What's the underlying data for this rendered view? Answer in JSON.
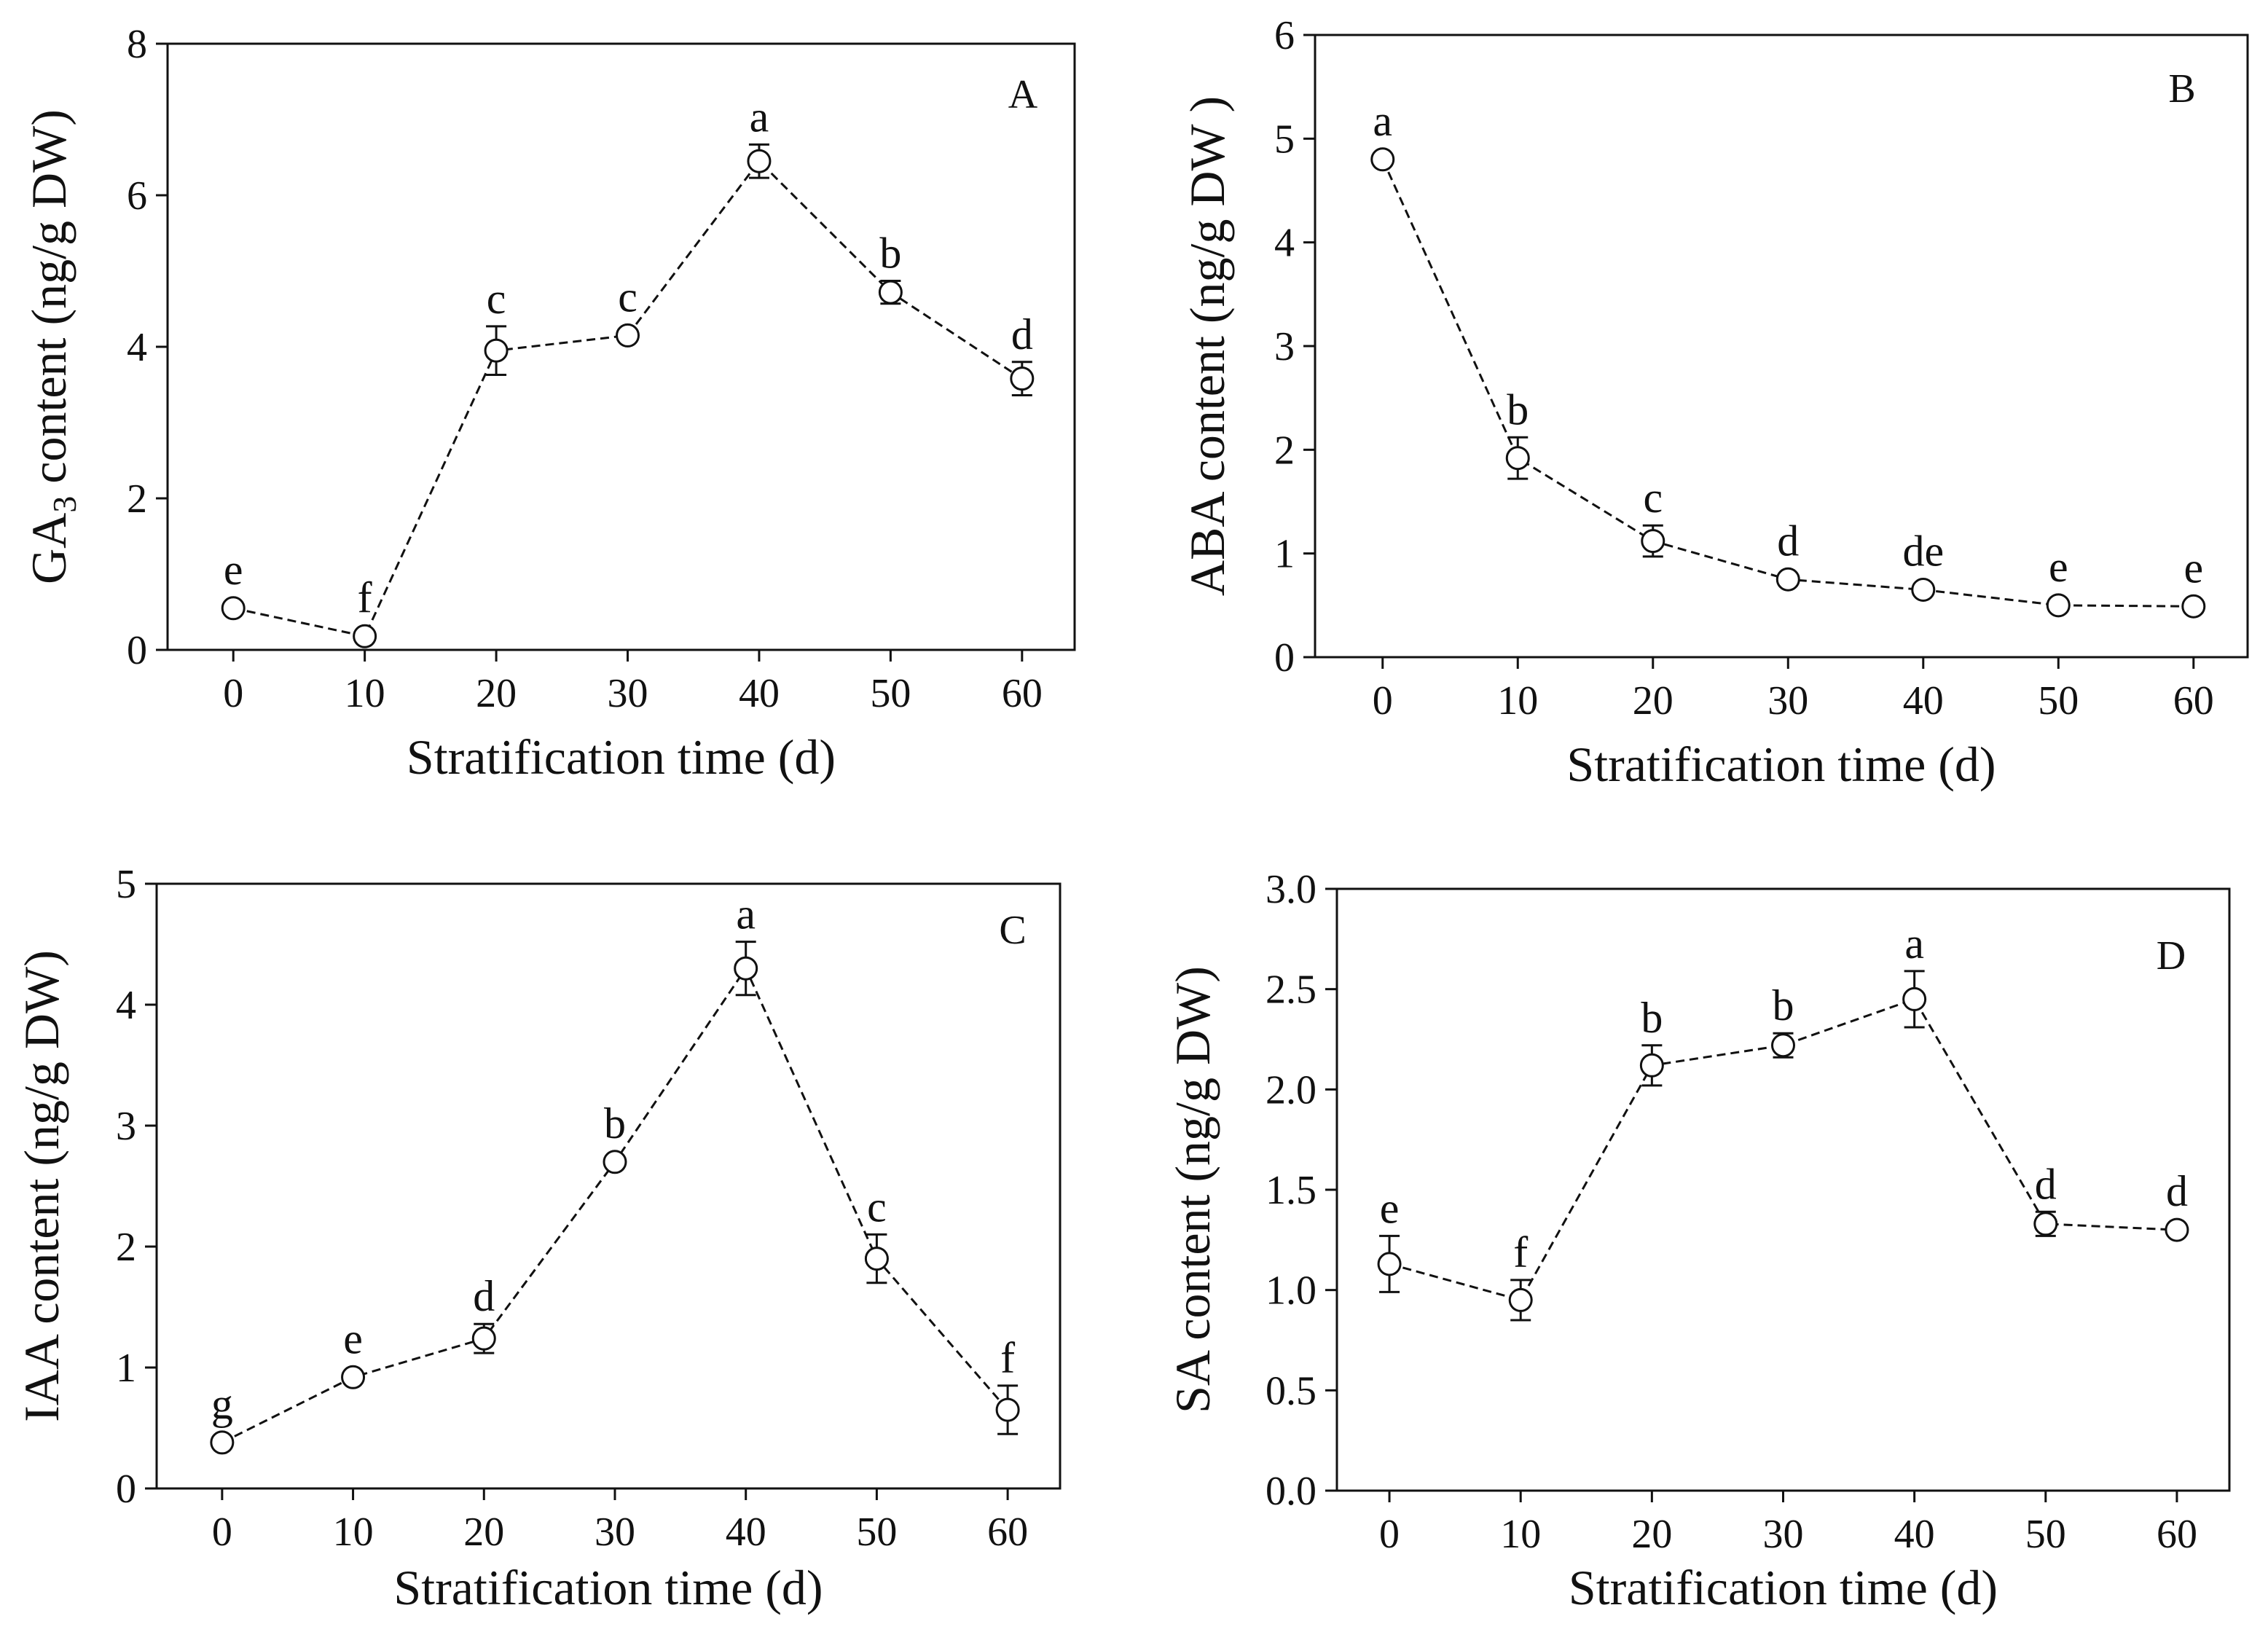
{
  "figure": {
    "chart_data": [
      {
        "type": "line",
        "panel": "A",
        "title": "",
        "xlabel": "Stratification time (d)",
        "ylabel_main": "GA",
        "ylabel_sub": "3",
        "ylabel_rest": " content (ng/g DW)",
        "x": [
          0,
          10,
          20,
          30,
          40,
          50,
          60
        ],
        "xticks": [
          "0",
          "10",
          "20",
          "30",
          "40",
          "50",
          "60"
        ],
        "xlim": [
          -5,
          64
        ],
        "ylim": [
          0,
          8
        ],
        "yticks": [
          "0",
          "2",
          "4",
          "6",
          "8"
        ],
        "ytick_values": [
          0,
          2,
          4,
          6,
          8
        ],
        "series": [
          {
            "name": "GA3",
            "values": [
              0.55,
              0.18,
              3.95,
              4.15,
              6.45,
              4.72,
              3.58
            ],
            "errors": [
              0.0,
              0.0,
              0.32,
              0.0,
              0.22,
              0.15,
              0.22
            ],
            "labels": [
              "e",
              "f",
              "c",
              "c",
              "a",
              "b",
              "d"
            ]
          }
        ]
      },
      {
        "type": "line",
        "panel": "B",
        "title": "",
        "xlabel": "Stratification time (d)",
        "ylabel_main": "ABA content (ng/g DW )",
        "ylabel_sub": "",
        "ylabel_rest": "",
        "x": [
          0,
          10,
          20,
          30,
          40,
          50,
          60
        ],
        "xticks": [
          "0",
          "10",
          "20",
          "30",
          "40",
          "50",
          "60"
        ],
        "xlim": [
          -5,
          64
        ],
        "ylim": [
          0,
          6
        ],
        "yticks": [
          "0",
          "1",
          "2",
          "3",
          "4",
          "5",
          "6"
        ],
        "ytick_values": [
          0,
          1,
          2,
          3,
          4,
          5,
          6
        ],
        "series": [
          {
            "name": "ABA",
            "values": [
              4.8,
              1.92,
              1.12,
              0.75,
              0.65,
              0.5,
              0.49
            ],
            "errors": [
              0.0,
              0.2,
              0.15,
              0.0,
              0.0,
              0.0,
              0.0
            ],
            "labels": [
              "a",
              "b",
              "c",
              "d",
              "de",
              "e",
              "e"
            ]
          }
        ]
      },
      {
        "type": "line",
        "panel": "C",
        "title": "",
        "xlabel": "Stratification time (d)",
        "ylabel_main": "IAA content (ng/g DW)",
        "ylabel_sub": "",
        "ylabel_rest": "",
        "x": [
          0,
          10,
          20,
          30,
          40,
          50,
          60
        ],
        "xticks": [
          "0",
          "10",
          "20",
          "30",
          "40",
          "50",
          "60"
        ],
        "xlim": [
          -5,
          64
        ],
        "ylim": [
          0,
          5
        ],
        "yticks": [
          "0",
          "1",
          "2",
          "3",
          "4",
          "5"
        ],
        "ytick_values": [
          0,
          1,
          2,
          3,
          4,
          5
        ],
        "series": [
          {
            "name": "IAA",
            "values": [
              0.38,
              0.92,
              1.24,
              2.7,
              4.3,
              1.9,
              0.65
            ],
            "errors": [
              0.0,
              0.0,
              0.12,
              0.0,
              0.22,
              0.2,
              0.2
            ],
            "labels": [
              "g",
              "e",
              "d",
              "b",
              "a",
              "c",
              "f"
            ]
          }
        ]
      },
      {
        "type": "line",
        "panel": "D",
        "title": "",
        "xlabel": "Stratification time (d)",
        "ylabel_main": "SA content (ng/g DW)",
        "ylabel_sub": "",
        "ylabel_rest": "",
        "x": [
          0,
          10,
          20,
          30,
          40,
          50,
          60
        ],
        "xticks": [
          "0",
          "10",
          "20",
          "30",
          "40",
          "50",
          "60"
        ],
        "xlim": [
          -4,
          64
        ],
        "ylim": [
          0,
          3
        ],
        "yticks": [
          "0.0",
          "0.5",
          "1.0",
          "1.5",
          "2.0",
          "2.5",
          "3.0"
        ],
        "ytick_values": [
          0,
          0.5,
          1,
          1.5,
          2,
          2.5,
          3
        ],
        "series": [
          {
            "name": "SA",
            "values": [
              1.13,
              0.95,
              2.12,
              2.22,
              2.45,
              1.33,
              1.3
            ],
            "errors": [
              0.14,
              0.1,
              0.1,
              0.06,
              0.14,
              0.06,
              0.0
            ],
            "labels": [
              "e",
              "f",
              "b",
              "b",
              "a",
              "d",
              "d"
            ]
          }
        ]
      }
    ]
  }
}
